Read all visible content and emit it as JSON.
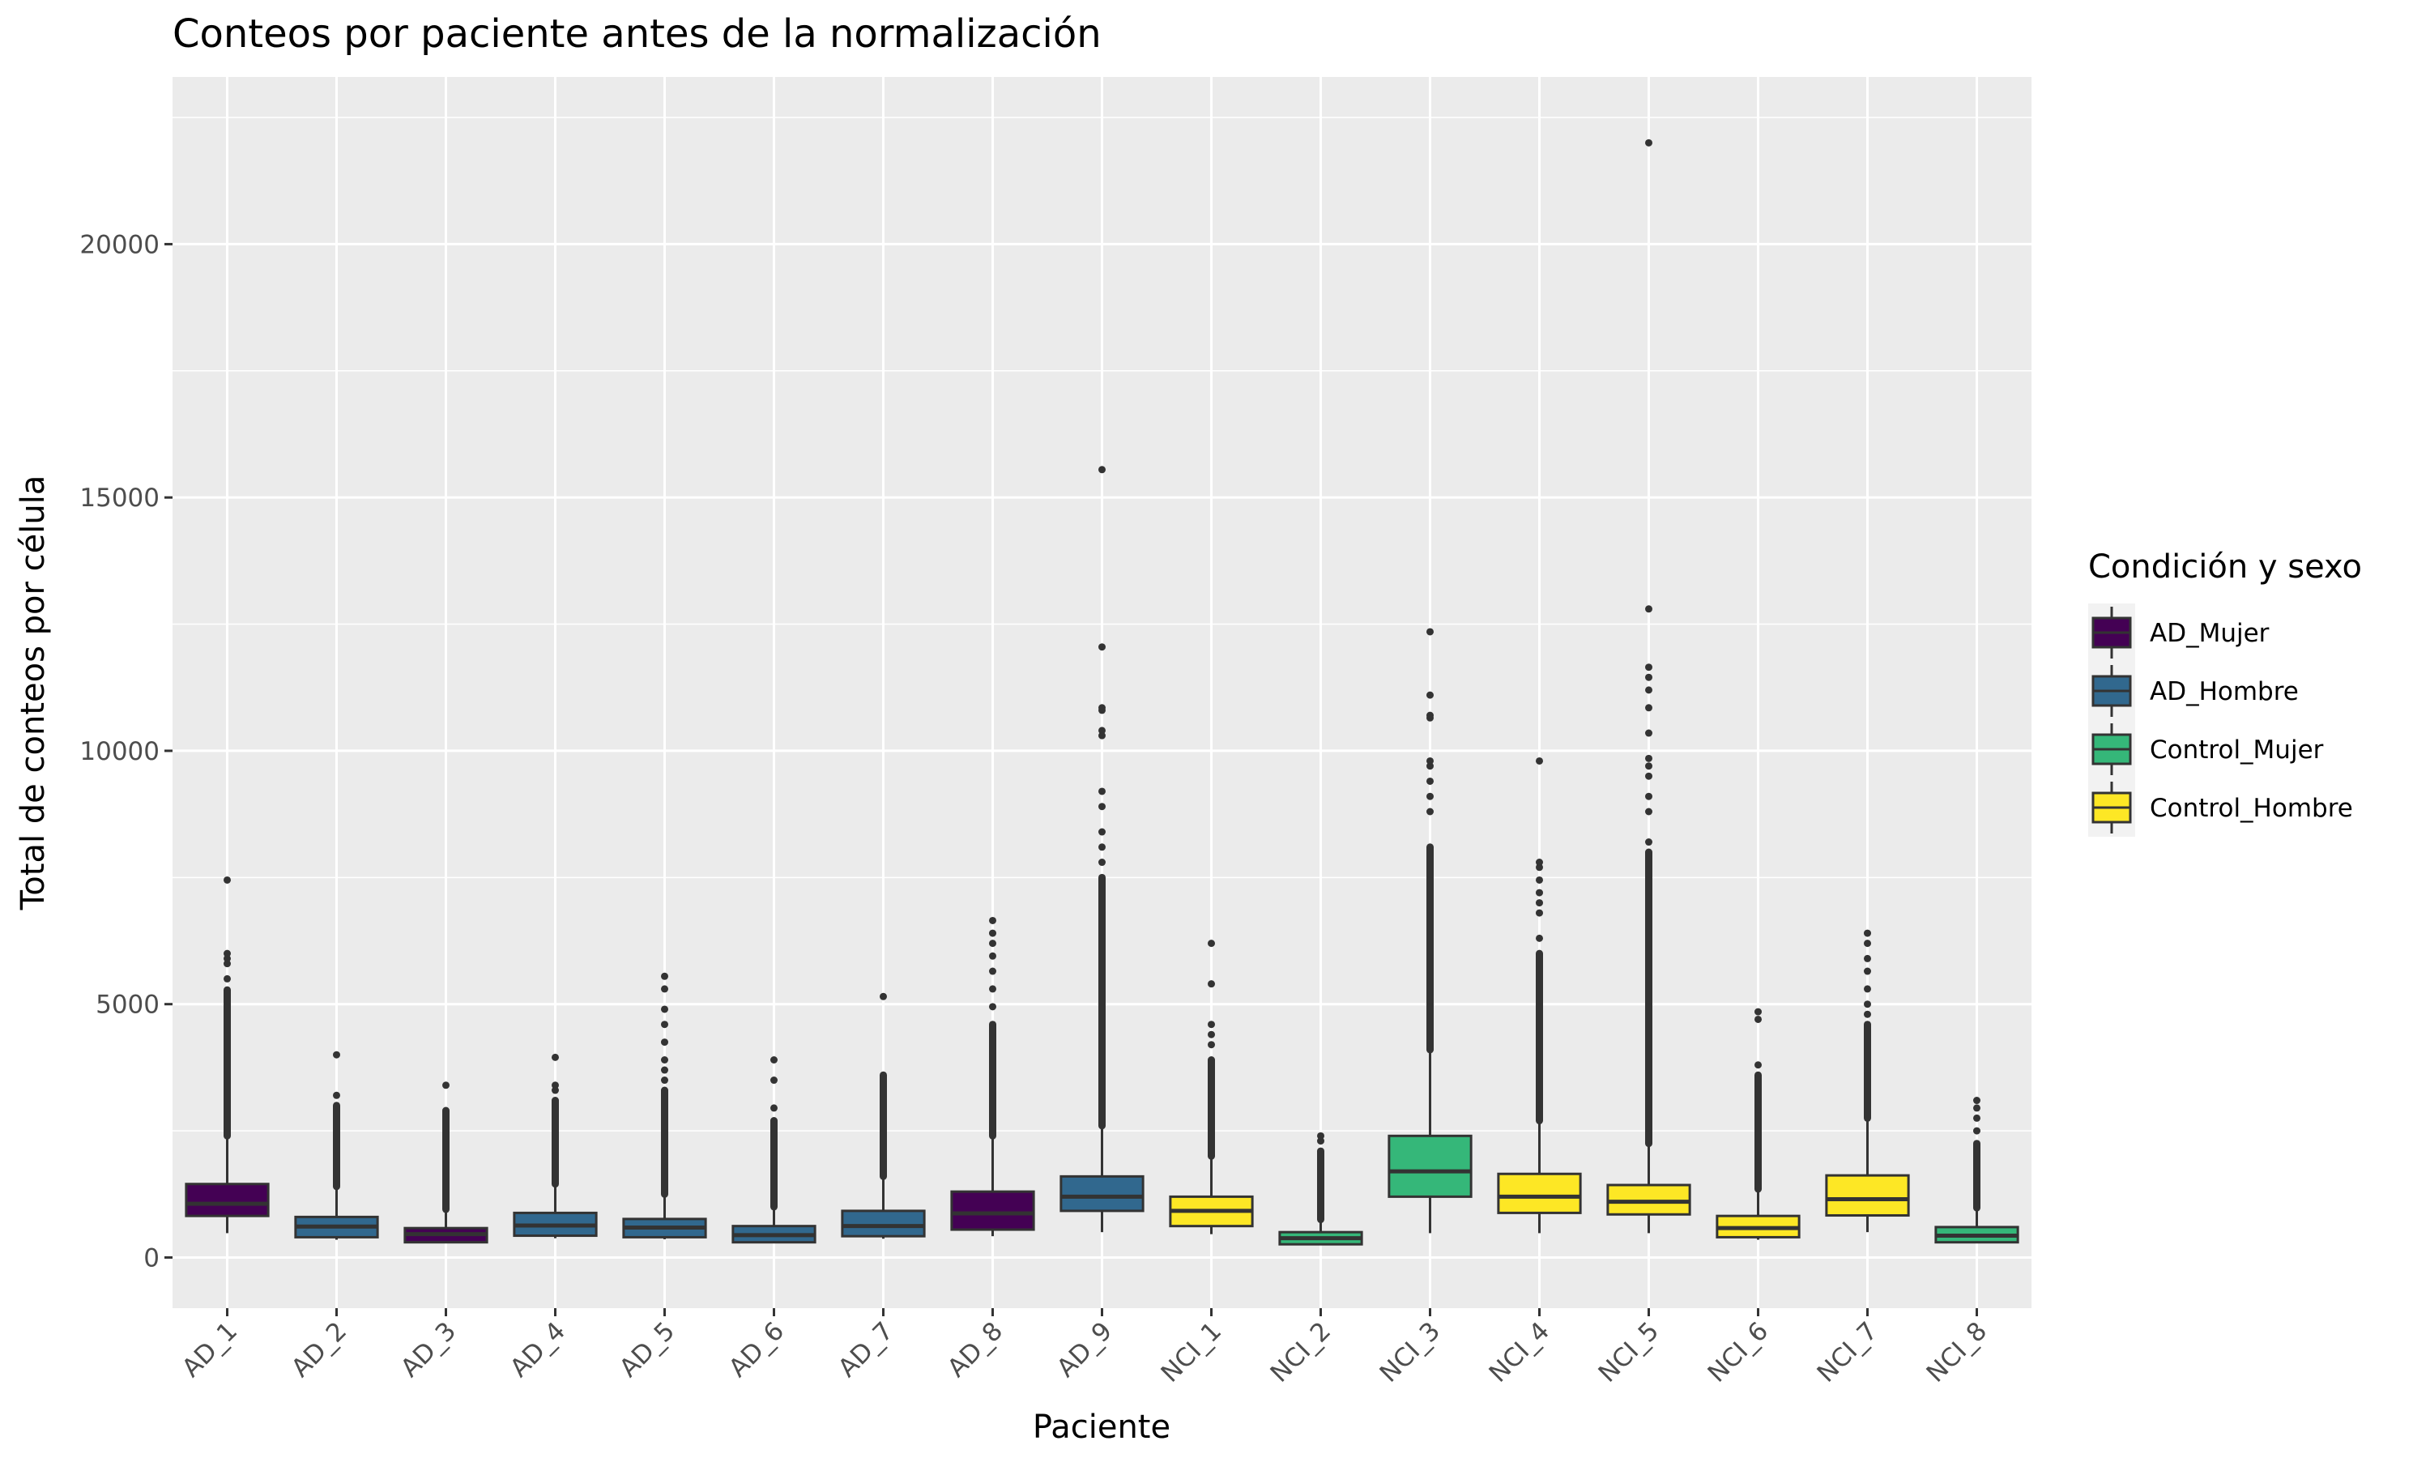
{
  "chart_data": {
    "type": "box",
    "title": "Conteos por paciente antes de la normalización",
    "xlabel": "Paciente",
    "ylabel": "Total de conteos por célula",
    "ylim": [
      -1000,
      23300
    ],
    "yticks": [
      0,
      5000,
      10000,
      15000,
      20000
    ],
    "ytick_labels": [
      "0",
      "5000",
      "10000",
      "15000",
      "20000"
    ],
    "grid": true,
    "legend": {
      "title": "Condición y sexo",
      "position": "right",
      "entries": [
        {
          "label": "AD_Mujer",
          "color": "#440154"
        },
        {
          "label": "AD_Hombre",
          "color": "#31688E"
        },
        {
          "label": "Control_Mujer",
          "color": "#35B779"
        },
        {
          "label": "Control_Hombre",
          "color": "#FDE725"
        }
      ]
    },
    "categories": [
      "AD_1",
      "AD_2",
      "AD_3",
      "AD_4",
      "AD_5",
      "AD_6",
      "AD_7",
      "AD_8",
      "AD_9",
      "NCI_1",
      "NCI_2",
      "NCI_3",
      "NCI_4",
      "NCI_5",
      "NCI_6",
      "NCI_7",
      "NCI_8"
    ],
    "boxes": [
      {
        "patient": "AD_1",
        "group": "AD_Mujer",
        "min": 480,
        "q1": 820,
        "median": 1060,
        "q3": 1450,
        "whisker_high": 2400,
        "outlier_range": [
          2400,
          5280
        ],
        "outliers": [
          5500,
          5800,
          5900,
          6000,
          7450
        ]
      },
      {
        "patient": "AD_2",
        "group": "AD_Hombre",
        "min": 350,
        "q1": 400,
        "median": 610,
        "q3": 800,
        "whisker_high": 1400,
        "outlier_range": [
          1400,
          3000
        ],
        "outliers": [
          3200,
          4000
        ]
      },
      {
        "patient": "AD_3",
        "group": "AD_Mujer",
        "min": 280,
        "q1": 300,
        "median": 460,
        "q3": 580,
        "whisker_high": 950,
        "outlier_range": [
          950,
          2900
        ],
        "outliers": [
          3400
        ]
      },
      {
        "patient": "AD_4",
        "group": "AD_Hombre",
        "min": 380,
        "q1": 430,
        "median": 630,
        "q3": 880,
        "whisker_high": 1450,
        "outlier_range": [
          1450,
          3100
        ],
        "outliers": [
          3300,
          3400,
          3950
        ]
      },
      {
        "patient": "AD_5",
        "group": "AD_Hombre",
        "min": 360,
        "q1": 400,
        "median": 590,
        "q3": 760,
        "whisker_high": 1250,
        "outlier_range": [
          1250,
          3300
        ],
        "outliers": [
          3500,
          3700,
          3900,
          4250,
          4600,
          4900,
          5300,
          5550
        ]
      },
      {
        "patient": "AD_6",
        "group": "AD_Hombre",
        "min": 280,
        "q1": 300,
        "median": 440,
        "q3": 620,
        "whisker_high": 1000,
        "outlier_range": [
          1000,
          2700
        ],
        "outliers": [
          2950,
          3500,
          3900
        ]
      },
      {
        "patient": "AD_7",
        "group": "AD_Hombre",
        "min": 370,
        "q1": 420,
        "median": 620,
        "q3": 920,
        "whisker_high": 1600,
        "outlier_range": [
          1600,
          3600
        ],
        "outliers": [
          5150
        ]
      },
      {
        "patient": "AD_8",
        "group": "AD_Mujer",
        "min": 420,
        "q1": 550,
        "median": 870,
        "q3": 1300,
        "whisker_high": 2400,
        "outlier_range": [
          2400,
          4600
        ],
        "outliers": [
          4950,
          5300,
          5650,
          5950,
          6200,
          6400,
          6650
        ]
      },
      {
        "patient": "AD_9",
        "group": "AD_Hombre",
        "min": 500,
        "q1": 920,
        "median": 1200,
        "q3": 1600,
        "whisker_high": 2600,
        "outlier_range": [
          2600,
          7500
        ],
        "outliers": [
          7800,
          8100,
          8400,
          8900,
          9200,
          10300,
          10400,
          10800,
          10850,
          12050,
          15550
        ]
      },
      {
        "patient": "NCI_1",
        "group": "Control_Hombre",
        "min": 460,
        "q1": 620,
        "median": 920,
        "q3": 1200,
        "whisker_high": 2000,
        "outlier_range": [
          2000,
          3900
        ],
        "outliers": [
          4200,
          4400,
          4600,
          5400,
          6200
        ]
      },
      {
        "patient": "NCI_2",
        "group": "Control_Mujer",
        "min": 250,
        "q1": 260,
        "median": 380,
        "q3": 500,
        "whisker_high": 750,
        "outlier_range": [
          750,
          2100
        ],
        "outliers": [
          2300,
          2400
        ]
      },
      {
        "patient": "NCI_3",
        "group": "Control_Mujer",
        "min": 480,
        "q1": 1200,
        "median": 1700,
        "q3": 2400,
        "whisker_high": 4100,
        "outlier_range": [
          4100,
          8100
        ],
        "outliers": [
          8800,
          9100,
          9400,
          9700,
          9800,
          10650,
          10700,
          11100,
          12350
        ]
      },
      {
        "patient": "NCI_4",
        "group": "Control_Hombre",
        "min": 480,
        "q1": 880,
        "median": 1200,
        "q3": 1650,
        "whisker_high": 2700,
        "outlier_range": [
          2700,
          6000
        ],
        "outliers": [
          6300,
          6800,
          7000,
          7200,
          7450,
          7700,
          7800,
          9800
        ]
      },
      {
        "patient": "NCI_5",
        "group": "Control_Hombre",
        "min": 480,
        "q1": 850,
        "median": 1100,
        "q3": 1430,
        "whisker_high": 2250,
        "outlier_range": [
          2250,
          8000
        ],
        "outliers": [
          8200,
          8800,
          9100,
          9500,
          9700,
          9850,
          10350,
          10850,
          11200,
          11450,
          11650,
          12800,
          22000
        ]
      },
      {
        "patient": "NCI_6",
        "group": "Control_Hombre",
        "min": 350,
        "q1": 400,
        "median": 580,
        "q3": 820,
        "whisker_high": 1350,
        "outlier_range": [
          1350,
          3600
        ],
        "outliers": [
          3800,
          4700,
          4850
        ]
      },
      {
        "patient": "NCI_7",
        "group": "Control_Hombre",
        "min": 500,
        "q1": 830,
        "median": 1150,
        "q3": 1620,
        "whisker_high": 2750,
        "outlier_range": [
          2750,
          4600
        ],
        "outliers": [
          4800,
          5000,
          5300,
          5650,
          5900,
          6200,
          6400
        ]
      },
      {
        "patient": "NCI_8",
        "group": "Control_Mujer",
        "min": 280,
        "q1": 300,
        "median": 430,
        "q3": 600,
        "whisker_high": 980,
        "outlier_range": [
          980,
          2250
        ],
        "outliers": [
          2500,
          2750,
          2950,
          3100
        ]
      }
    ]
  }
}
